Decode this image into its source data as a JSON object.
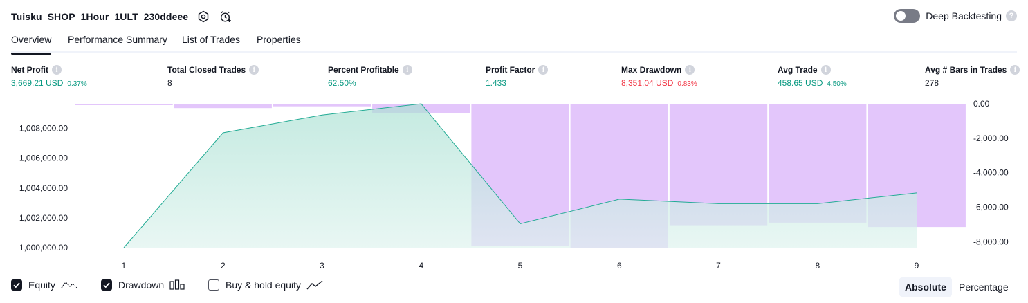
{
  "header": {
    "title": "Tuisku_SHOP_1Hour_1ULT_230ddeee",
    "deep_backtesting_label": "Deep Backtesting",
    "help_glyph": "?"
  },
  "tabs": [
    {
      "label": "Overview",
      "active": true
    },
    {
      "label": "Performance Summary",
      "active": false
    },
    {
      "label": "List of Trades",
      "active": false
    },
    {
      "label": "Properties",
      "active": false
    }
  ],
  "metrics": {
    "info_glyph": "i",
    "net_profit": {
      "label": "Net Profit",
      "value": "3,669.21 USD",
      "pct": "0.37%"
    },
    "total_closed_trades": {
      "label": "Total Closed Trades",
      "value": "8"
    },
    "percent_profitable": {
      "label": "Percent Profitable",
      "value": "62.50%"
    },
    "profit_factor": {
      "label": "Profit Factor",
      "value": "1.433"
    },
    "max_drawdown": {
      "label": "Max Drawdown",
      "value": "8,351.04 USD",
      "pct": "0.83%"
    },
    "avg_trade": {
      "label": "Avg Trade",
      "value": "458.65 USD",
      "pct": "4.50%"
    },
    "avg_bars": {
      "label": "Avg # Bars in Trades",
      "value": "278"
    }
  },
  "chart_data": {
    "type": "area",
    "x": [
      1,
      2,
      3,
      4,
      5,
      6,
      7,
      8,
      9
    ],
    "equity": [
      1000000,
      1007700,
      1008900,
      1009650,
      1001600,
      1003250,
      1002950,
      1002950,
      1003670
    ],
    "drawdown_bars": [
      {
        "trade": 1,
        "value": 0
      },
      {
        "trade": 2,
        "value": -250
      },
      {
        "trade": 3,
        "value": -150
      },
      {
        "trade": 4,
        "value": -550
      },
      {
        "trade": 5,
        "value": -8250
      },
      {
        "trade": 6,
        "value": -8351.04
      },
      {
        "trade": 7,
        "value": -7050
      },
      {
        "trade": 8,
        "value": -6900
      },
      {
        "trade": 9,
        "value": -7150
      }
    ],
    "left_ticks": [
      "1,000,000.00",
      "1,002,000.00",
      "1,004,000.00",
      "1,006,000.00",
      "1,008,000.00"
    ],
    "left_tick_values": [
      1000000,
      1002000,
      1004000,
      1006000,
      1008000
    ],
    "right_ticks": [
      "0.00",
      "-2,000.00",
      "-4,000.00",
      "-6,000.00",
      "-8,000.00"
    ],
    "right_tick_values": [
      0,
      -2000,
      -4000,
      -6000,
      -8000
    ],
    "ylim_left": [
      1000000,
      1009650
    ],
    "ylim_right": [
      -8351.04,
      0
    ],
    "colors": {
      "equity_line": "#22ab94",
      "equity_fill": "#bfe9df",
      "drawdown": "#e1c3fb"
    }
  },
  "legend": {
    "equity": {
      "label": "Equity",
      "checked": true
    },
    "drawdown": {
      "label": "Drawdown",
      "checked": true
    },
    "buy_hold": {
      "label": "Buy & hold equity",
      "checked": false
    }
  },
  "scale_toggle": {
    "absolute": "Absolute",
    "percentage": "Percentage",
    "selected": "Absolute"
  }
}
